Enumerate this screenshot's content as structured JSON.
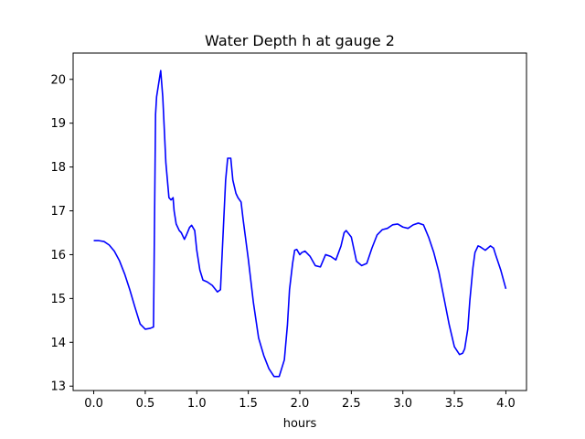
{
  "chart_data": {
    "type": "line",
    "title": "Water Depth h at gauge 2",
    "xlabel": "hours",
    "ylabel": "",
    "xlim": [
      -0.2,
      4.2
    ],
    "ylim": [
      12.9,
      20.6
    ],
    "xticks": [
      0.0,
      0.5,
      1.0,
      1.5,
      2.0,
      2.5,
      3.0,
      3.5,
      4.0
    ],
    "xtick_labels": [
      "0.0",
      "0.5",
      "1.0",
      "1.5",
      "2.0",
      "2.5",
      "3.0",
      "3.5",
      "4.0"
    ],
    "yticks": [
      13,
      14,
      15,
      16,
      17,
      18,
      19,
      20
    ],
    "ytick_labels": [
      "13",
      "14",
      "15",
      "16",
      "17",
      "18",
      "19",
      "20"
    ],
    "grid": false,
    "series": [
      {
        "color": "#0000ff",
        "x": [
          0.0,
          0.05,
          0.1,
          0.15,
          0.2,
          0.25,
          0.3,
          0.35,
          0.4,
          0.45,
          0.5,
          0.55,
          0.58,
          0.6,
          0.61,
          0.63,
          0.65,
          0.67,
          0.68,
          0.7,
          0.73,
          0.75,
          0.77,
          0.78,
          0.8,
          0.83,
          0.85,
          0.88,
          0.9,
          0.93,
          0.95,
          0.98,
          1.0,
          1.03,
          1.06,
          1.1,
          1.15,
          1.2,
          1.23,
          1.25,
          1.28,
          1.3,
          1.33,
          1.35,
          1.38,
          1.4,
          1.43,
          1.45,
          1.5,
          1.55,
          1.6,
          1.65,
          1.7,
          1.75,
          1.8,
          1.85,
          1.88,
          1.9,
          1.93,
          1.95,
          1.97,
          2.0,
          2.02,
          2.05,
          2.1,
          2.15,
          2.2,
          2.25,
          2.3,
          2.35,
          2.4,
          2.43,
          2.45,
          2.5,
          2.55,
          2.6,
          2.65,
          2.7,
          2.75,
          2.8,
          2.85,
          2.9,
          2.95,
          3.0,
          3.05,
          3.1,
          3.15,
          3.2,
          3.25,
          3.3,
          3.35,
          3.4,
          3.45,
          3.5,
          3.55,
          3.58,
          3.6,
          3.63,
          3.65,
          3.68,
          3.7,
          3.73,
          3.75,
          3.8,
          3.85,
          3.88,
          3.9,
          3.95,
          4.0
        ],
        "y": [
          16.32,
          16.32,
          16.3,
          16.22,
          16.08,
          15.86,
          15.56,
          15.2,
          14.8,
          14.42,
          14.3,
          14.32,
          14.35,
          19.2,
          19.6,
          19.9,
          20.2,
          19.6,
          19.1,
          18.1,
          17.3,
          17.25,
          17.3,
          17.0,
          16.7,
          16.55,
          16.5,
          16.35,
          16.45,
          16.62,
          16.67,
          16.55,
          16.1,
          15.65,
          15.42,
          15.38,
          15.3,
          15.15,
          15.2,
          16.2,
          17.7,
          18.2,
          18.2,
          17.7,
          17.4,
          17.3,
          17.2,
          16.8,
          15.9,
          14.9,
          14.1,
          13.7,
          13.4,
          13.22,
          13.22,
          13.6,
          14.4,
          15.2,
          15.8,
          16.1,
          16.12,
          16.0,
          16.05,
          16.08,
          15.96,
          15.75,
          15.72,
          16.0,
          15.96,
          15.88,
          16.2,
          16.5,
          16.55,
          16.4,
          15.85,
          15.75,
          15.8,
          16.15,
          16.45,
          16.57,
          16.6,
          16.68,
          16.7,
          16.63,
          16.6,
          16.68,
          16.72,
          16.68,
          16.4,
          16.05,
          15.6,
          15.0,
          14.4,
          13.9,
          13.72,
          13.75,
          13.85,
          14.3,
          14.95,
          15.7,
          16.05,
          16.2,
          16.18,
          16.1,
          16.2,
          16.15,
          16.0,
          15.65,
          15.22
        ]
      }
    ]
  }
}
